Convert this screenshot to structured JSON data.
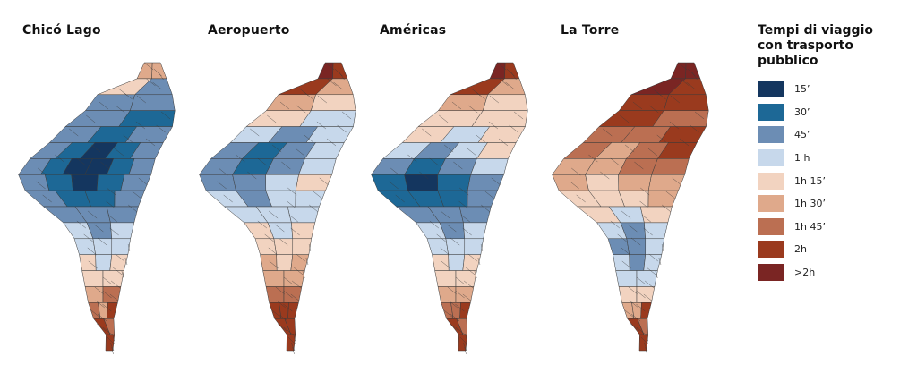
{
  "panels": [
    {
      "title": "Chicó Lago",
      "x": 25
    },
    {
      "title": "Aeropuerto",
      "x": 232
    },
    {
      "title": "Américas",
      "x": 424
    },
    {
      "title": "La Torre",
      "x": 626
    }
  ],
  "legend": {
    "title_line1": "Tempi di viaggio",
    "title_line2": "con trasporto pubblico",
    "items": [
      {
        "label": "15’",
        "color": "#14365f"
      },
      {
        "label": "30’",
        "color": "#1d6896"
      },
      {
        "label": "45’",
        "color": "#6c8db4"
      },
      {
        "label": "1 h",
        "color": "#c7d8eb"
      },
      {
        "label": "1h 15’",
        "color": "#f2d3c0"
      },
      {
        "label": "1h 30’",
        "color": "#dfa98b"
      },
      {
        "label": "1h 45’",
        "color": "#bb6f52"
      },
      {
        "label": "2h",
        "color": "#9a3a1e"
      },
      {
        "label": ">2h",
        "color": "#7a2523"
      }
    ]
  },
  "maps": [
    {
      "name": "chico-lago",
      "grid": [
        "00000000000000000000000000000000",
        "00000000000000000000000000000000",
        "00000000000000000000000000000000",
        "00000000000000000000000000000000",
        "00000000000000000000000000000000",
        "00000000000000000000000000000000",
        "00000000000000000000000000000000",
        "00000000000000000000000000000000",
        "00000000000000000000000000000000",
        "00000000000000000000000000000000"
      ],
      "levels": [
        [
          6,
          6
        ],
        [
          5,
          3
        ],
        [
          3,
          3
        ],
        [
          3,
          2
        ],
        [
          3,
          2,
          3
        ],
        [
          3,
          2,
          1,
          2,
          3
        ],
        [
          3,
          2,
          1,
          1,
          2,
          3
        ],
        [
          3,
          2,
          1,
          2,
          3
        ],
        [
          3,
          2,
          2,
          3
        ],
        [
          3,
          3,
          3
        ],
        [
          4,
          3,
          4
        ],
        [
          4,
          4,
          4
        ],
        [
          5,
          4,
          5
        ],
        [
          5,
          5
        ],
        [
          6,
          7
        ],
        [
          7,
          6,
          8
        ],
        [
          8,
          7
        ],
        [
          8
        ]
      ]
    },
    {
      "name": "aeropuerto",
      "grid": [],
      "levels": [
        [
          9,
          8
        ],
        [
          8,
          6
        ],
        [
          6,
          5
        ],
        [
          5,
          4
        ],
        [
          4,
          3,
          4
        ],
        [
          3,
          2,
          3,
          4
        ],
        [
          3,
          2,
          3,
          4
        ],
        [
          3,
          3,
          4,
          5
        ],
        [
          4,
          3,
          4,
          4
        ],
        [
          4,
          4,
          4
        ],
        [
          5,
          4,
          5
        ],
        [
          5,
          5,
          5
        ],
        [
          6,
          5,
          6
        ],
        [
          6,
          6
        ],
        [
          7,
          7
        ],
        [
          8,
          8,
          8
        ],
        [
          8,
          8
        ],
        [
          8
        ]
      ]
    },
    {
      "name": "americas",
      "grid": [],
      "levels": [
        [
          9,
          8
        ],
        [
          8,
          6
        ],
        [
          6,
          5
        ],
        [
          5,
          5
        ],
        [
          5,
          4,
          5
        ],
        [
          4,
          3,
          4,
          5
        ],
        [
          3,
          2,
          3,
          4
        ],
        [
          2,
          1,
          2,
          3
        ],
        [
          2,
          2,
          2,
          3
        ],
        [
          3,
          3,
          3
        ],
        [
          4,
          3,
          4
        ],
        [
          4,
          4,
          4
        ],
        [
          5,
          4,
          5
        ],
        [
          5,
          5
        ],
        [
          6,
          6
        ],
        [
          7,
          7,
          8
        ],
        [
          8,
          7
        ],
        [
          8
        ]
      ]
    },
    {
      "name": "la-torre",
      "grid": [],
      "levels": [
        [
          9,
          9
        ],
        [
          9,
          8
        ],
        [
          8,
          8
        ],
        [
          8,
          7
        ],
        [
          7,
          7,
          8
        ],
        [
          7,
          6,
          7,
          8
        ],
        [
          6,
          6,
          7,
          7
        ],
        [
          6,
          5,
          6,
          6
        ],
        [
          5,
          5,
          5,
          6
        ],
        [
          5,
          4,
          5
        ],
        [
          4,
          3,
          4
        ],
        [
          3,
          3,
          4
        ],
        [
          4,
          3,
          4
        ],
        [
          4,
          4
        ],
        [
          5,
          5
        ],
        [
          6,
          6,
          8
        ],
        [
          8,
          7
        ],
        [
          8
        ]
      ]
    }
  ]
}
